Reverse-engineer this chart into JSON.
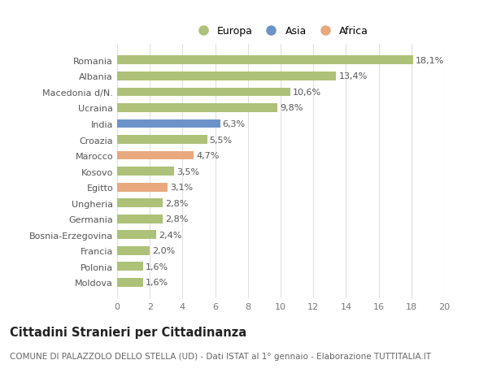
{
  "countries": [
    "Romania",
    "Albania",
    "Macedonia d/N.",
    "Ucraina",
    "India",
    "Croazia",
    "Marocco",
    "Kosovo",
    "Egitto",
    "Ungheria",
    "Germania",
    "Bosnia-Erzegovina",
    "Francia",
    "Polonia",
    "Moldova"
  ],
  "values": [
    18.1,
    13.4,
    10.6,
    9.8,
    6.3,
    5.5,
    4.7,
    3.5,
    3.1,
    2.8,
    2.8,
    2.4,
    2.0,
    1.6,
    1.6
  ],
  "labels": [
    "18,1%",
    "13,4%",
    "10,6%",
    "9,8%",
    "6,3%",
    "5,5%",
    "4,7%",
    "3,5%",
    "3,1%",
    "2,8%",
    "2,8%",
    "2,4%",
    "2,0%",
    "1,6%",
    "1,6%"
  ],
  "continents": [
    "Europa",
    "Europa",
    "Europa",
    "Europa",
    "Asia",
    "Europa",
    "Africa",
    "Europa",
    "Africa",
    "Europa",
    "Europa",
    "Europa",
    "Europa",
    "Europa",
    "Europa"
  ],
  "colors": {
    "Europa": "#adc178",
    "Asia": "#6b93c9",
    "Africa": "#e8a97e"
  },
  "xlim": [
    0,
    20
  ],
  "xticks": [
    0,
    2,
    4,
    6,
    8,
    10,
    12,
    14,
    16,
    18,
    20
  ],
  "background_color": "#ffffff",
  "grid_color": "#e0e0e0",
  "title": "Cittadini Stranieri per Cittadinanza",
  "subtitle": "COMUNE DI PALAZZOLO DELLO STELLA (UD) - Dati ISTAT al 1° gennaio - Elaborazione TUTTITALIA.IT",
  "bar_height": 0.55,
  "label_fontsize": 8,
  "title_fontsize": 10.5,
  "subtitle_fontsize": 7.5,
  "ytick_fontsize": 8,
  "xtick_fontsize": 8,
  "legend_fontsize": 9,
  "legend_order": [
    "Europa",
    "Asia",
    "Africa"
  ],
  "legend_colors": [
    "#adc178",
    "#6b93c9",
    "#e8a97e"
  ]
}
